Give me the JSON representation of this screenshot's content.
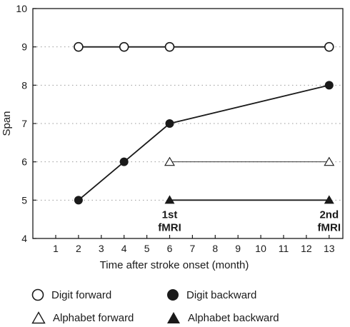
{
  "chart_data": {
    "type": "line",
    "ylabel": "Span",
    "xlabel": "Time after stroke onset (month)",
    "x_ticks": [
      "1",
      "2",
      "3",
      "4",
      "5",
      "6",
      "7",
      "8",
      "9",
      "10",
      "11",
      "12",
      "13"
    ],
    "y_ticks": [
      "4",
      "5",
      "6",
      "7",
      "8",
      "9",
      "10"
    ],
    "ylim": [
      4,
      10
    ],
    "grid": "horizontal dotted",
    "series": [
      {
        "name": "Digit forward",
        "marker": "open-circle",
        "color": "#1a1a1a",
        "points": [
          {
            "x": "2",
            "y": 9
          },
          {
            "x": "4",
            "y": 9
          },
          {
            "x": "6",
            "y": 9
          },
          {
            "x": "13",
            "y": 9
          }
        ]
      },
      {
        "name": "Digit backward",
        "marker": "filled-circle",
        "color": "#1a1a1a",
        "points": [
          {
            "x": "2",
            "y": 5
          },
          {
            "x": "4",
            "y": 6
          },
          {
            "x": "6",
            "y": 7
          },
          {
            "x": "13",
            "y": 8
          }
        ]
      },
      {
        "name": "Alphabet forward",
        "marker": "open-triangle",
        "color": "#1a1a1a",
        "points": [
          {
            "x": "6",
            "y": 6
          },
          {
            "x": "13",
            "y": 6
          }
        ]
      },
      {
        "name": "Alphabet backward",
        "marker": "filled-triangle",
        "color": "#1a1a1a",
        "points": [
          {
            "x": "6",
            "y": 5
          },
          {
            "x": "13",
            "y": 5
          }
        ]
      }
    ],
    "annotations": [
      {
        "x": "6",
        "lines": [
          "1st",
          "fMRI"
        ]
      },
      {
        "x": "13",
        "lines": [
          "2nd",
          "fMRI"
        ]
      }
    ]
  },
  "legend": [
    {
      "label": "Digit forward",
      "marker": "open-circle"
    },
    {
      "label": "Digit backward",
      "marker": "filled-circle"
    },
    {
      "label": "Alphabet forward",
      "marker": "open-triangle"
    },
    {
      "label": "Alphabet backward",
      "marker": "filled-triangle"
    }
  ]
}
